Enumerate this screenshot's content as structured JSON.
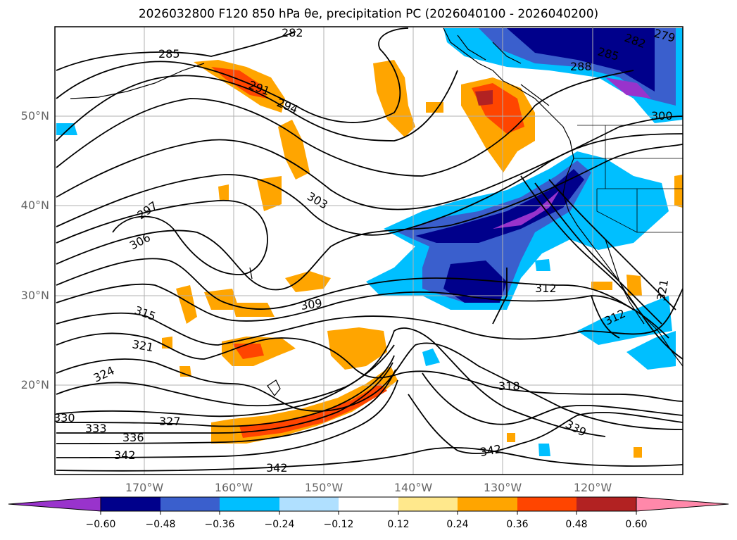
{
  "title": "2026032800 F120 850 hPa θe, precipitation PC (2026040100 - 2026040200)",
  "lat_labels": [
    "50°N",
    "40°N",
    "30°N",
    "20°N"
  ],
  "lon_labels": [
    "170°W",
    "160°W",
    "150°W",
    "140°W",
    "130°W",
    "120°W"
  ],
  "contour_labels": [
    "282",
    "285",
    "285",
    "282",
    "279",
    "288",
    "291",
    "294",
    "300",
    "297",
    "303",
    "306",
    "312",
    "309",
    "315",
    "321",
    "312",
    "324",
    "318",
    "321",
    "330",
    "333",
    "327",
    "336",
    "339",
    "342",
    "342",
    "342"
  ],
  "colorbar": {
    "ticks": [
      "−0.60",
      "−0.48",
      "−0.36",
      "−0.24",
      "−0.12",
      "0.12",
      "0.24",
      "0.36",
      "0.48",
      "0.60"
    ],
    "colors": [
      "#9933cc",
      "#00008b",
      "#3a5fcd",
      "#00bfff",
      "#b0e0ff",
      "#ffffff",
      "#ffe88c",
      "#ffa500",
      "#ff4500",
      "#b22222",
      "#ff88aa"
    ]
  }
}
